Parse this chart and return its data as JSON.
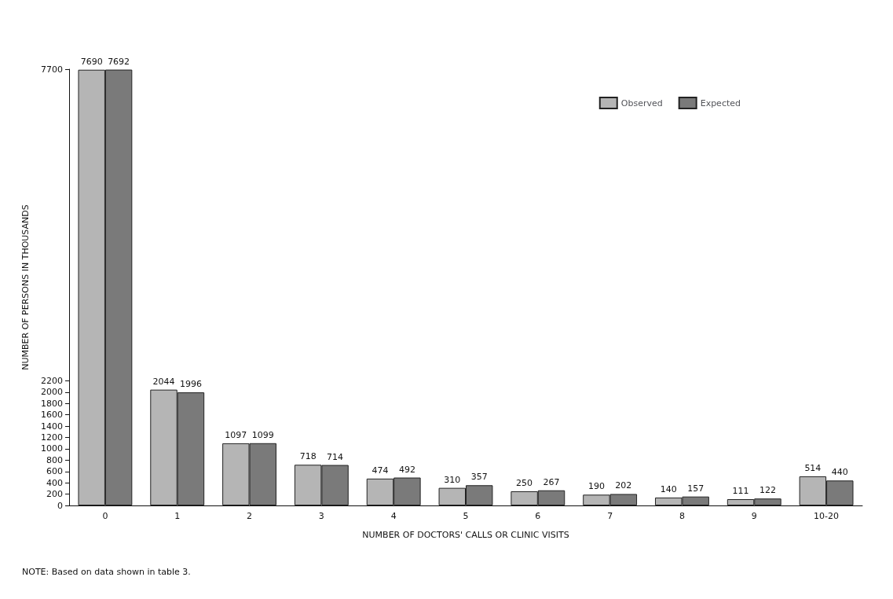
{
  "chart_data": {
    "type": "bar",
    "xlabel": "NUMBER OF DOCTORS' CALLS OR CLINIC VISITS",
    "ylabel": "NUMBER OF PERSONS IN THOUSANDS",
    "annotations": [
      "NOTE: Based on data shown in table 3."
    ],
    "categories": [
      "0",
      "1",
      "2",
      "3",
      "4",
      "5",
      "6",
      "7",
      "8",
      "9",
      "10-20"
    ],
    "series": [
      {
        "name": "Observed",
        "color": "#b5b5b5",
        "values": [
          7690,
          2044,
          1097,
          718,
          474,
          310,
          250,
          190,
          140,
          111,
          514
        ]
      },
      {
        "name": "Expected",
        "color": "#7a7a7a",
        "values": [
          7692,
          1996,
          1099,
          714,
          492,
          357,
          267,
          202,
          157,
          122,
          440
        ]
      }
    ],
    "ylim": [
      0,
      7700
    ],
    "yticks": [
      0,
      200,
      400,
      600,
      800,
      1000,
      1200,
      1400,
      1600,
      1800,
      2000,
      2200,
      7700
    ],
    "data_labels": true,
    "grid": false,
    "legend": "top right"
  }
}
